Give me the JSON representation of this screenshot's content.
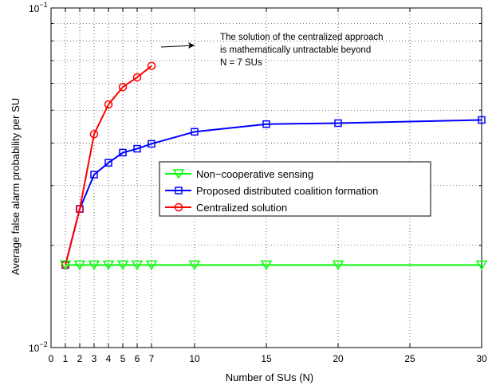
{
  "chart_data": {
    "type": "line",
    "xlabel": "Number of SUs (N)",
    "ylabel": "Average false alarm probability per SU",
    "xlim": [
      0,
      30
    ],
    "ylim": [
      0.01,
      0.1
    ],
    "yscale": "log",
    "x_ticks": [
      0,
      1,
      2,
      3,
      4,
      5,
      6,
      7,
      10,
      15,
      20,
      25,
      30
    ],
    "x_tick_labels": [
      "0",
      "1",
      "2",
      "3",
      "4",
      "5",
      "6",
      "7",
      "10",
      "15",
      "20",
      "25",
      "30"
    ],
    "y_tick_labels": {
      "bottom": {
        "base": "10",
        "exp": "−2"
      },
      "top": {
        "base": "10",
        "exp": "−1"
      }
    },
    "grid": true,
    "legend_position": "center-right",
    "series": [
      {
        "name": "Non−cooperative sensing",
        "color": "#00ff00",
        "marker": "triangle-down",
        "x": [
          1,
          2,
          3,
          4,
          5,
          6,
          7,
          10,
          15,
          20,
          30
        ],
        "y": [
          0.0175,
          0.0175,
          0.0175,
          0.0175,
          0.0175,
          0.0175,
          0.0175,
          0.0175,
          0.0175,
          0.0175,
          0.0175
        ]
      },
      {
        "name": "Proposed distributed coalition formation",
        "color": "#0000ff",
        "marker": "square",
        "x": [
          1,
          2,
          3,
          4,
          5,
          6,
          7,
          10,
          15,
          20,
          30
        ],
        "y": [
          0.0175,
          0.0256,
          0.0323,
          0.035,
          0.0375,
          0.0385,
          0.0398,
          0.0432,
          0.0455,
          0.0458,
          0.0468
        ]
      },
      {
        "name": "Centralized solution",
        "color": "#ff0000",
        "marker": "circle",
        "x": [
          1,
          2,
          3,
          4,
          5,
          6,
          7
        ],
        "y": [
          0.0175,
          0.0256,
          0.0425,
          0.052,
          0.0585,
          0.0625,
          0.0675
        ]
      }
    ],
    "annotation": {
      "lines": [
        "The solution of the centralized approach",
        "is mathematically untractable beyond",
        "N = 7 SUs"
      ]
    }
  }
}
